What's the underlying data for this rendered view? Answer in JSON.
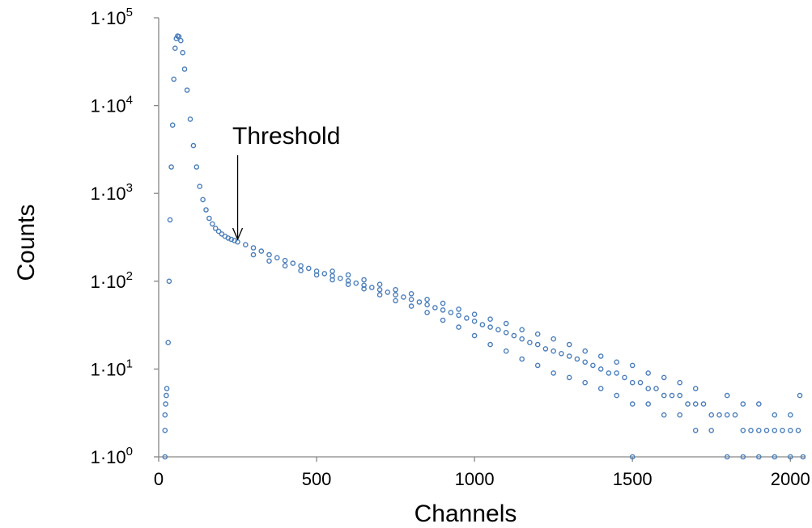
{
  "chart_data": {
    "type": "scatter",
    "title": "",
    "xlabel": "Channels",
    "ylabel": "Counts",
    "xlim": [
      0,
      2048
    ],
    "ylim": [
      1,
      100000
    ],
    "y_scale": "log",
    "grid": false,
    "legend": "none",
    "x_ticks": [
      "0",
      "500",
      "1000",
      "1500",
      "2000"
    ],
    "y_ticks": [
      {
        "base": "1·10",
        "exp": "0"
      },
      {
        "base": "1·10",
        "exp": "1"
      },
      {
        "base": "1·10",
        "exp": "2"
      },
      {
        "base": "1·10",
        "exp": "3"
      },
      {
        "base": "1·10",
        "exp": "4"
      },
      {
        "base": "1·10",
        "exp": "5"
      }
    ],
    "annotation": {
      "text": "Threshold",
      "x": 250,
      "y": 300
    },
    "marker_color": "#4a7ebb",
    "series": [
      {
        "points": [
          [
            20,
            1
          ],
          [
            20,
            2
          ],
          [
            20,
            3
          ],
          [
            22,
            4
          ],
          [
            24,
            5
          ],
          [
            26,
            6
          ],
          [
            30,
            20
          ],
          [
            33,
            100
          ],
          [
            36,
            500
          ],
          [
            40,
            2000
          ],
          [
            44,
            6000
          ],
          [
            48,
            20000
          ],
          [
            52,
            45000
          ],
          [
            56,
            58000
          ],
          [
            60,
            62000
          ],
          [
            64,
            61000
          ],
          [
            70,
            55000
          ],
          [
            76,
            40000
          ],
          [
            82,
            26000
          ],
          [
            90,
            15000
          ],
          [
            100,
            7000
          ],
          [
            110,
            3500
          ],
          [
            120,
            2000
          ],
          [
            130,
            1200
          ],
          [
            140,
            850
          ],
          [
            150,
            650
          ],
          [
            160,
            520
          ],
          [
            170,
            450
          ],
          [
            180,
            400
          ],
          [
            190,
            370
          ],
          [
            200,
            345
          ],
          [
            210,
            325
          ],
          [
            220,
            310
          ],
          [
            230,
            300
          ],
          [
            240,
            290
          ],
          [
            250,
            280
          ],
          [
            275,
            260
          ],
          [
            300,
            240
          ],
          [
            325,
            220
          ],
          [
            350,
            200
          ],
          [
            375,
            185
          ],
          [
            400,
            172
          ],
          [
            425,
            160
          ],
          [
            450,
            150
          ],
          [
            475,
            140
          ],
          [
            500,
            130
          ],
          [
            525,
            122
          ],
          [
            550,
            115
          ],
          [
            575,
            108
          ],
          [
            600,
            101
          ],
          [
            625,
            95
          ],
          [
            650,
            90
          ],
          [
            675,
            85
          ],
          [
            700,
            80
          ],
          [
            725,
            75
          ],
          [
            750,
            70
          ],
          [
            775,
            66
          ],
          [
            800,
            62
          ],
          [
            825,
            58
          ],
          [
            850,
            54
          ],
          [
            875,
            50
          ],
          [
            900,
            47
          ],
          [
            925,
            44
          ],
          [
            950,
            41
          ],
          [
            975,
            38
          ],
          [
            1000,
            35
          ],
          [
            1025,
            32
          ],
          [
            1050,
            30
          ],
          [
            1075,
            28
          ],
          [
            1100,
            26
          ],
          [
            1125,
            24
          ],
          [
            1150,
            22
          ],
          [
            1175,
            20
          ],
          [
            1200,
            19
          ],
          [
            1225,
            17
          ],
          [
            1250,
            16
          ],
          [
            1275,
            15
          ],
          [
            1300,
            14
          ],
          [
            1325,
            13
          ],
          [
            1350,
            12
          ],
          [
            1375,
            11
          ],
          [
            1400,
            10
          ],
          [
            1425,
            9
          ],
          [
            1450,
            9
          ],
          [
            1475,
            8
          ],
          [
            1500,
            7
          ],
          [
            1525,
            7
          ],
          [
            1550,
            6
          ],
          [
            1575,
            6
          ],
          [
            1600,
            5
          ],
          [
            1625,
            5
          ],
          [
            1650,
            5
          ],
          [
            1675,
            4
          ],
          [
            1700,
            4
          ],
          [
            1725,
            4
          ],
          [
            1750,
            3
          ],
          [
            1775,
            3
          ],
          [
            1800,
            3
          ],
          [
            1825,
            3
          ],
          [
            1850,
            2
          ],
          [
            1875,
            2
          ],
          [
            1900,
            2
          ],
          [
            1925,
            2
          ],
          [
            1950,
            2
          ],
          [
            1975,
            2
          ],
          [
            2000,
            2
          ],
          [
            2025,
            2
          ],
          [
            2040,
            1
          ],
          [
            1800,
            1
          ],
          [
            1850,
            1
          ],
          [
            1900,
            1
          ],
          [
            1950,
            1
          ],
          [
            2000,
            1
          ],
          [
            1500,
            1
          ],
          [
            1700,
            2
          ],
          [
            1750,
            2
          ],
          [
            1650,
            3
          ],
          [
            1600,
            3
          ],
          [
            1550,
            4
          ],
          [
            1500,
            4
          ],
          [
            1450,
            5
          ],
          [
            1400,
            6
          ],
          [
            1350,
            7
          ],
          [
            1300,
            8
          ],
          [
            1250,
            9
          ],
          [
            1200,
            11
          ],
          [
            1150,
            13
          ],
          [
            1100,
            16
          ],
          [
            1050,
            19
          ],
          [
            1000,
            24
          ],
          [
            950,
            30
          ],
          [
            900,
            36
          ],
          [
            850,
            44
          ],
          [
            800,
            52
          ],
          [
            750,
            60
          ],
          [
            700,
            70
          ],
          [
            650,
            82
          ],
          [
            600,
            92
          ],
          [
            550,
            104
          ],
          [
            500,
            118
          ],
          [
            450,
            132
          ],
          [
            400,
            150
          ],
          [
            350,
            170
          ],
          [
            300,
            200
          ],
          [
            1800,
            5
          ],
          [
            1850,
            4
          ],
          [
            1900,
            4
          ],
          [
            1950,
            3
          ],
          [
            2000,
            3
          ],
          [
            2030,
            5
          ],
          [
            1700,
            6
          ],
          [
            1650,
            7
          ],
          [
            1600,
            8
          ],
          [
            1550,
            9
          ],
          [
            1500,
            11
          ],
          [
            1450,
            12
          ],
          [
            1400,
            14
          ],
          [
            1350,
            16
          ],
          [
            1300,
            19
          ],
          [
            1250,
            22
          ],
          [
            1200,
            25
          ],
          [
            1150,
            28
          ],
          [
            1100,
            33
          ],
          [
            1050,
            37
          ],
          [
            1000,
            42
          ],
          [
            950,
            48
          ],
          [
            900,
            56
          ],
          [
            850,
            62
          ],
          [
            800,
            72
          ],
          [
            750,
            80
          ],
          [
            700,
            92
          ],
          [
            650,
            104
          ],
          [
            600,
            118
          ],
          [
            550,
            130
          ]
        ]
      }
    ]
  }
}
